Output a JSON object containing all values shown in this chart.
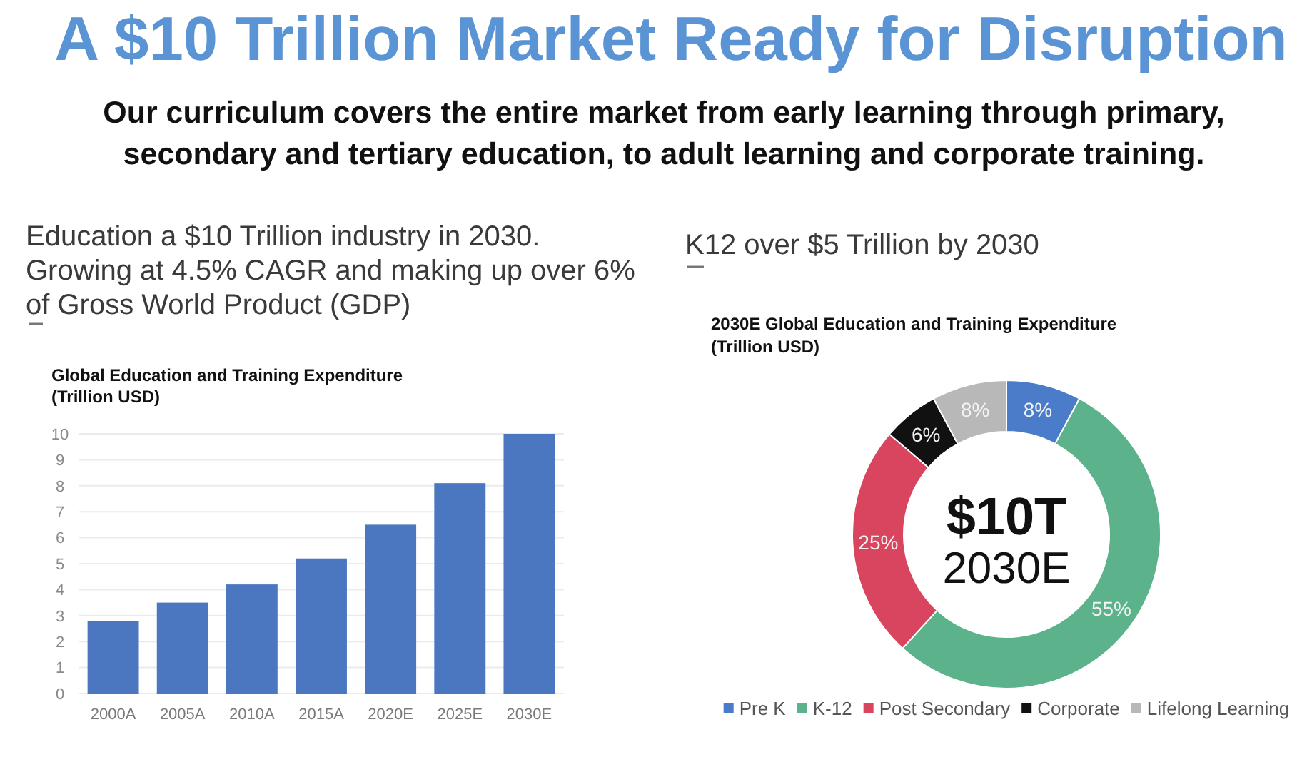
{
  "chart_data": [
    {
      "type": "other",
      "title": "A $10 Trillion Market Ready for Disruption",
      "subtitle": "Our curriculum covers the entire market from early learning through primary, secondary and tertiary education, to adult learning and corporate training."
    },
    {
      "type": "bar",
      "title": "Education a $10 Trillion industry in 2030. Growing at 4.5% CAGR and making up over 6% of Gross World Product (GDP)",
      "subtitle": "Global Education and Training Expenditure (Trillion USD)",
      "categories": [
        "2000A",
        "2005A",
        "2010A",
        "2015A",
        "2020E",
        "2025E",
        "2030E"
      ],
      "values": [
        2.8,
        3.5,
        4.2,
        5.2,
        6.5,
        8.1,
        10.0
      ],
      "color": "#4a77bf",
      "ylim": [
        0,
        10
      ],
      "yticks": [
        0,
        1,
        2,
        3,
        4,
        5,
        6,
        7,
        8,
        9,
        10
      ],
      "grid": "y"
    },
    {
      "type": "donut",
      "title": "K12 over $5 Trillion by 2030",
      "subtitle": "2030E Global Education and Training Expenditure (Trillion USD)",
      "categories": [
        "Pre K",
        "K-12",
        "Post Secondary",
        "Corporate",
        "Lifelong Learning"
      ],
      "values": [
        8,
        55,
        25,
        6,
        8
      ],
      "colors": [
        "#4a7cc9",
        "#5bb28b",
        "#d9455f",
        "#111111",
        "#b8b8b8"
      ],
      "value_labels": [
        "8%",
        "55%",
        "25%",
        "6%",
        "8%"
      ],
      "legend": "bottom",
      "annotations": [
        "$10T",
        "2030E"
      ]
    }
  ]
}
